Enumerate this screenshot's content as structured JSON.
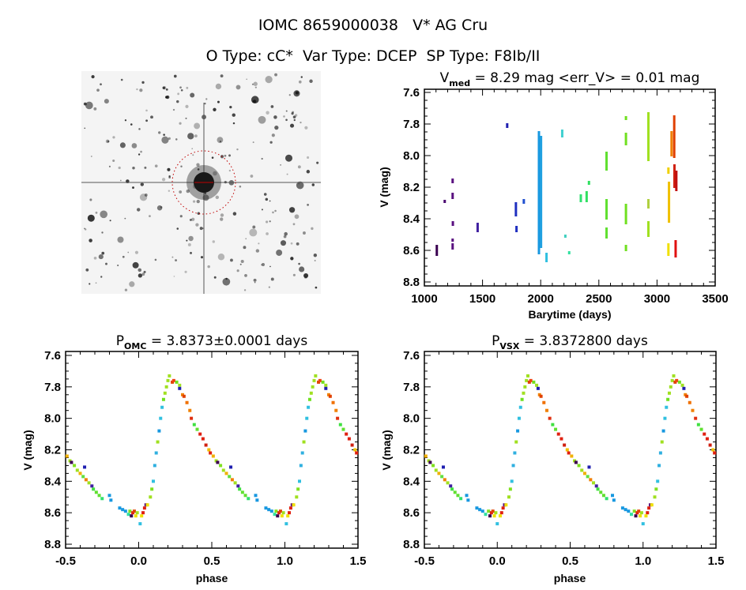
{
  "header": {
    "title": "IOMC 8659000038   V* AG Cru",
    "subtitle": "O Type: cC*  Var Type: DCEP  SP Type: F8Ib/II"
  },
  "sky_image": {
    "colors": {
      "background": "#f4f4f4",
      "star": "#111111",
      "aperture": "#c00000"
    }
  },
  "chart_data": [
    {
      "type": "scatter",
      "title_main": "V",
      "title_sub": "med",
      "title_rest": " = 8.29 mag <err_V> = 0.01 mag",
      "xlabel": "Barytime (days)",
      "ylabel": "V (mag)",
      "xlim": [
        1000,
        3500
      ],
      "ylim": [
        7.58,
        8.825
      ],
      "y_inverted": true,
      "xticks": [
        1000,
        1500,
        2000,
        2500,
        3000,
        3500
      ],
      "xtick_labels": [
        "1000",
        "1500",
        "2000",
        "2500",
        "3000",
        "3500"
      ],
      "yticks": [
        7.6,
        7.8,
        8.0,
        8.2,
        8.4,
        8.6,
        8.8
      ],
      "ytick_labels": [
        "7.6",
        "7.8",
        "8.0",
        "8.2",
        "8.4",
        "8.6",
        "8.8"
      ],
      "grid": false,
      "segments": [
        {
          "t": 1107,
          "v": [
            8.57,
            8.63
          ],
          "color": "#3a0050"
        },
        {
          "t": 1175,
          "v": [
            8.285,
            8.295
          ],
          "color": "#4a0870"
        },
        {
          "t": 1243,
          "v": [
            8.15,
            8.17
          ],
          "color": "#5a1080"
        },
        {
          "t": 1243,
          "v": [
            8.24,
            8.27
          ],
          "color": "#5a1080"
        },
        {
          "t": 1245,
          "v": [
            8.42,
            8.44
          ],
          "color": "#5a1080"
        },
        {
          "t": 1243,
          "v": [
            8.53,
            8.54
          ],
          "color": "#5a1080"
        },
        {
          "t": 1243,
          "v": [
            8.56,
            8.59
          ],
          "color": "#5a1080"
        },
        {
          "t": 1458,
          "v": [
            8.43,
            8.48
          ],
          "color": "#4020a0"
        },
        {
          "t": 1712,
          "v": [
            7.8,
            7.82
          ],
          "color": "#2020b0"
        },
        {
          "t": 1787,
          "v": [
            8.3,
            8.38
          ],
          "color": "#2030c0"
        },
        {
          "t": 1792,
          "v": [
            8.45,
            8.48
          ],
          "color": "#2030c0"
        },
        {
          "t": 1855,
          "v": [
            8.28,
            8.3
          ],
          "color": "#2050d0"
        },
        {
          "t": 1985,
          "v": [
            7.85,
            8.62
          ],
          "color": "#1898e0"
        },
        {
          "t": 2003,
          "v": [
            7.88,
            8.58
          ],
          "color": "#20a0e0"
        },
        {
          "t": 2050,
          "v": [
            8.62,
            8.67
          ],
          "color": "#30c0e0"
        },
        {
          "t": 2185,
          "v": [
            7.84,
            7.88
          ],
          "color": "#40d0d0"
        },
        {
          "t": 2212,
          "v": [
            8.505,
            8.515
          ],
          "color": "#40d0c0"
        },
        {
          "t": 2245,
          "v": [
            8.61,
            8.62
          ],
          "color": "#30e0a0"
        },
        {
          "t": 2345,
          "v": [
            8.25,
            8.29
          ],
          "color": "#30e070"
        },
        {
          "t": 2395,
          "v": [
            8.23,
            8.29
          ],
          "color": "#30e060"
        },
        {
          "t": 2415,
          "v": [
            8.165,
            8.18
          ],
          "color": "#30e060"
        },
        {
          "t": 2566,
          "v": [
            7.98,
            8.09
          ],
          "color": "#60e030"
        },
        {
          "t": 2566,
          "v": [
            8.28,
            8.4
          ],
          "color": "#60e030"
        },
        {
          "t": 2566,
          "v": [
            8.46,
            8.52
          ],
          "color": "#60e030"
        },
        {
          "t": 2733,
          "v": [
            7.755,
            7.77
          ],
          "color": "#70e020"
        },
        {
          "t": 2733,
          "v": [
            7.86,
            7.93
          ],
          "color": "#70e020"
        },
        {
          "t": 2733,
          "v": [
            8.31,
            8.43
          ],
          "color": "#70e020"
        },
        {
          "t": 2733,
          "v": [
            8.57,
            8.6
          ],
          "color": "#70e020"
        },
        {
          "t": 2926,
          "v": [
            7.73,
            8.03
          ],
          "color": "#a0e020"
        },
        {
          "t": 2926,
          "v": [
            8.28,
            8.33
          ],
          "color": "#b0d040"
        },
        {
          "t": 2926,
          "v": [
            8.42,
            8.51
          ],
          "color": "#a0e020"
        },
        {
          "t": 3098,
          "v": [
            8.08,
            8.11
          ],
          "color": "#f0d000"
        },
        {
          "t": 3103,
          "v": [
            8.17,
            8.42
          ],
          "color": "#f0c000"
        },
        {
          "t": 3098,
          "v": [
            8.56,
            8.63
          ],
          "color": "#f0e000"
        },
        {
          "t": 3125,
          "v": [
            7.85,
            8.0
          ],
          "color": "#f08000"
        },
        {
          "t": 3148,
          "v": [
            7.75,
            8.01
          ],
          "color": "#e04000"
        },
        {
          "t": 3150,
          "v": [
            8.06,
            8.2
          ],
          "color": "#d02010"
        },
        {
          "t": 3166,
          "v": [
            8.1,
            8.22
          ],
          "color": "#c01010"
        },
        {
          "t": 3160,
          "v": [
            8.54,
            8.64
          ],
          "color": "#e01010"
        }
      ]
    },
    {
      "type": "scatter",
      "title_main": "P",
      "title_sub": "OMC",
      "title_rest": " = 3.8373±0.0001 days",
      "xlabel": "phase",
      "ylabel": "V (mag)",
      "xlim": [
        -0.5,
        1.5
      ],
      "ylim": [
        7.575,
        8.825
      ],
      "y_inverted": true,
      "xticks": [
        -0.5,
        0.0,
        0.5,
        1.0,
        1.5
      ],
      "xtick_labels": [
        "-0.5",
        "0.0",
        "0.5",
        "1.0",
        "1.5"
      ],
      "yticks": [
        7.6,
        7.8,
        8.0,
        8.2,
        8.4,
        8.6,
        8.8
      ],
      "ytick_labels": [
        "7.6",
        "7.8",
        "8.0",
        "8.2",
        "8.4",
        "8.6",
        "8.8"
      ],
      "grid": false,
      "period_days": 3.8373,
      "period_err_days": 0.0001,
      "points": [
        [
          0.03,
          8.6,
          "#e02010"
        ],
        [
          0.04,
          8.57,
          "#e02010"
        ],
        [
          0.05,
          8.55,
          "#5a1080"
        ],
        [
          0.02,
          8.62,
          "#f0e000"
        ],
        [
          0.01,
          8.67,
          "#30c0e0"
        ],
        [
          0.06,
          8.55,
          "#f0e000"
        ],
        [
          0.08,
          8.5,
          "#a0e020"
        ],
        [
          0.09,
          8.45,
          "#80e020"
        ],
        [
          0.1,
          8.4,
          "#30c0e0"
        ],
        [
          0.11,
          8.3,
          "#30b0e0"
        ],
        [
          0.12,
          8.22,
          "#30b0e0"
        ],
        [
          0.13,
          8.15,
          "#a0e020"
        ],
        [
          0.14,
          8.08,
          "#1898e0"
        ],
        [
          0.15,
          8.0,
          "#30c0e0"
        ],
        [
          0.16,
          7.93,
          "#30c0e0"
        ],
        [
          0.17,
          7.88,
          "#70e020"
        ],
        [
          0.18,
          7.84,
          "#a0e020"
        ],
        [
          0.19,
          7.8,
          "#a0e020"
        ],
        [
          0.2,
          7.76,
          "#a0e020"
        ],
        [
          0.21,
          7.73,
          "#a0e020"
        ],
        [
          0.23,
          7.77,
          "#e04000"
        ],
        [
          0.24,
          7.76,
          "#f04010"
        ],
        [
          0.26,
          7.77,
          "#70e020"
        ],
        [
          0.28,
          7.79,
          "#a0e020"
        ],
        [
          0.28,
          7.81,
          "#2020b0"
        ],
        [
          0.3,
          7.85,
          "#f08000"
        ],
        [
          0.31,
          7.86,
          "#e04000"
        ],
        [
          0.33,
          7.9,
          "#f07000"
        ],
        [
          0.35,
          7.95,
          "#f08000"
        ],
        [
          0.36,
          8.0,
          "#e03010"
        ],
        [
          0.38,
          8.04,
          "#40e040"
        ],
        [
          0.4,
          8.07,
          "#60e030"
        ],
        [
          0.42,
          8.1,
          "#e02010"
        ],
        [
          0.44,
          8.13,
          "#e02010"
        ],
        [
          0.46,
          8.17,
          "#d02010"
        ],
        [
          0.48,
          8.2,
          "#f0c000"
        ],
        [
          0.49,
          8.22,
          "#e02010"
        ],
        [
          0.51,
          8.24,
          "#f0b000"
        ],
        [
          0.53,
          8.27,
          "#a0e020"
        ],
        [
          0.54,
          8.28,
          "#3a0050"
        ],
        [
          0.56,
          8.3,
          "#80e020"
        ],
        [
          0.58,
          8.33,
          "#a0e020"
        ],
        [
          0.6,
          8.35,
          "#f0b000"
        ],
        [
          0.62,
          8.37,
          "#60e040"
        ],
        [
          0.63,
          8.31,
          "#2020b0"
        ],
        [
          0.64,
          8.39,
          "#f08000"
        ],
        [
          0.66,
          8.41,
          "#a0e020"
        ],
        [
          0.68,
          8.43,
          "#4020a0"
        ],
        [
          0.69,
          8.45,
          "#40e040"
        ],
        [
          0.71,
          8.47,
          "#60e030"
        ],
        [
          0.73,
          8.49,
          "#60e030"
        ],
        [
          0.75,
          8.51,
          "#30e070"
        ],
        [
          0.8,
          8.49,
          "#1898e0"
        ],
        [
          0.81,
          8.52,
          "#1898e0"
        ],
        [
          0.87,
          8.57,
          "#1898e0"
        ],
        [
          0.89,
          8.58,
          "#1898e0"
        ],
        [
          0.91,
          8.59,
          "#1898e0"
        ],
        [
          0.93,
          8.61,
          "#30e0a0"
        ],
        [
          0.94,
          8.59,
          "#80e020"
        ],
        [
          0.95,
          8.62,
          "#3a0050"
        ],
        [
          0.96,
          8.6,
          "#e02010"
        ],
        [
          0.97,
          8.59,
          "#e04000"
        ],
        [
          0.98,
          8.62,
          "#f0e000"
        ],
        [
          0.99,
          8.6,
          "#a0e020"
        ]
      ]
    },
    {
      "type": "scatter",
      "title_main": "P",
      "title_sub": "VSX",
      "title_rest": " = 3.8372800 days",
      "xlabel": "phase",
      "ylabel": "V (mag)",
      "xlim": [
        -0.5,
        1.5
      ],
      "ylim": [
        7.575,
        8.825
      ],
      "y_inverted": true,
      "xticks": [
        -0.5,
        0.0,
        0.5,
        1.0,
        1.5
      ],
      "xtick_labels": [
        "-0.5",
        "0.0",
        "0.5",
        "1.0",
        "1.5"
      ],
      "yticks": [
        7.6,
        7.8,
        8.0,
        8.2,
        8.4,
        8.6,
        8.8
      ],
      "ytick_labels": [
        "7.6",
        "7.8",
        "8.0",
        "8.2",
        "8.4",
        "8.6",
        "8.8"
      ],
      "grid": false,
      "period_days": 3.83728,
      "points": [
        [
          0.03,
          8.6,
          "#e02010"
        ],
        [
          0.04,
          8.57,
          "#e02010"
        ],
        [
          0.05,
          8.55,
          "#5a1080"
        ],
        [
          0.02,
          8.62,
          "#f0e000"
        ],
        [
          0.0,
          8.67,
          "#30c0e0"
        ],
        [
          0.06,
          8.55,
          "#f0e000"
        ],
        [
          0.08,
          8.5,
          "#a0e020"
        ],
        [
          0.09,
          8.45,
          "#80e020"
        ],
        [
          0.1,
          8.4,
          "#30c0e0"
        ],
        [
          0.11,
          8.3,
          "#30b0e0"
        ],
        [
          0.12,
          8.22,
          "#30b0e0"
        ],
        [
          0.13,
          8.15,
          "#a0e020"
        ],
        [
          0.14,
          8.08,
          "#1898e0"
        ],
        [
          0.15,
          8.0,
          "#30c0e0"
        ],
        [
          0.16,
          7.93,
          "#30c0e0"
        ],
        [
          0.17,
          7.88,
          "#70e020"
        ],
        [
          0.18,
          7.84,
          "#a0e020"
        ],
        [
          0.19,
          7.8,
          "#a0e020"
        ],
        [
          0.2,
          7.76,
          "#a0e020"
        ],
        [
          0.21,
          7.73,
          "#a0e020"
        ],
        [
          0.22,
          7.77,
          "#e04000"
        ],
        [
          0.23,
          7.76,
          "#f04010"
        ],
        [
          0.25,
          7.77,
          "#70e020"
        ],
        [
          0.27,
          7.79,
          "#a0e020"
        ],
        [
          0.28,
          7.81,
          "#2020b0"
        ],
        [
          0.29,
          7.85,
          "#f08000"
        ],
        [
          0.3,
          7.86,
          "#e04000"
        ],
        [
          0.32,
          7.9,
          "#f07000"
        ],
        [
          0.34,
          7.95,
          "#f08000"
        ],
        [
          0.36,
          8.0,
          "#e03010"
        ],
        [
          0.38,
          8.04,
          "#40e040"
        ],
        [
          0.4,
          8.07,
          "#60e030"
        ],
        [
          0.42,
          8.1,
          "#e02010"
        ],
        [
          0.44,
          8.13,
          "#e02010"
        ],
        [
          0.46,
          8.17,
          "#d02010"
        ],
        [
          0.48,
          8.2,
          "#f0c000"
        ],
        [
          0.49,
          8.22,
          "#e02010"
        ],
        [
          0.51,
          8.24,
          "#f0b000"
        ],
        [
          0.53,
          8.27,
          "#a0e020"
        ],
        [
          0.54,
          8.28,
          "#3a0050"
        ],
        [
          0.56,
          8.3,
          "#80e020"
        ],
        [
          0.58,
          8.33,
          "#a0e020"
        ],
        [
          0.6,
          8.35,
          "#f0b000"
        ],
        [
          0.62,
          8.37,
          "#60e040"
        ],
        [
          0.63,
          8.31,
          "#2020b0"
        ],
        [
          0.64,
          8.39,
          "#f08000"
        ],
        [
          0.66,
          8.41,
          "#a0e020"
        ],
        [
          0.68,
          8.43,
          "#4020a0"
        ],
        [
          0.69,
          8.45,
          "#40e040"
        ],
        [
          0.71,
          8.47,
          "#60e030"
        ],
        [
          0.73,
          8.49,
          "#60e030"
        ],
        [
          0.75,
          8.51,
          "#30e070"
        ],
        [
          0.79,
          8.49,
          "#1898e0"
        ],
        [
          0.8,
          8.52,
          "#1898e0"
        ],
        [
          0.86,
          8.57,
          "#1898e0"
        ],
        [
          0.88,
          8.58,
          "#1898e0"
        ],
        [
          0.9,
          8.59,
          "#1898e0"
        ],
        [
          0.92,
          8.61,
          "#30e0a0"
        ],
        [
          0.94,
          8.59,
          "#80e020"
        ],
        [
          0.95,
          8.62,
          "#3a0050"
        ],
        [
          0.96,
          8.6,
          "#e02010"
        ],
        [
          0.97,
          8.59,
          "#e04000"
        ],
        [
          0.98,
          8.62,
          "#f0e000"
        ],
        [
          0.99,
          8.6,
          "#a0e020"
        ]
      ]
    }
  ]
}
